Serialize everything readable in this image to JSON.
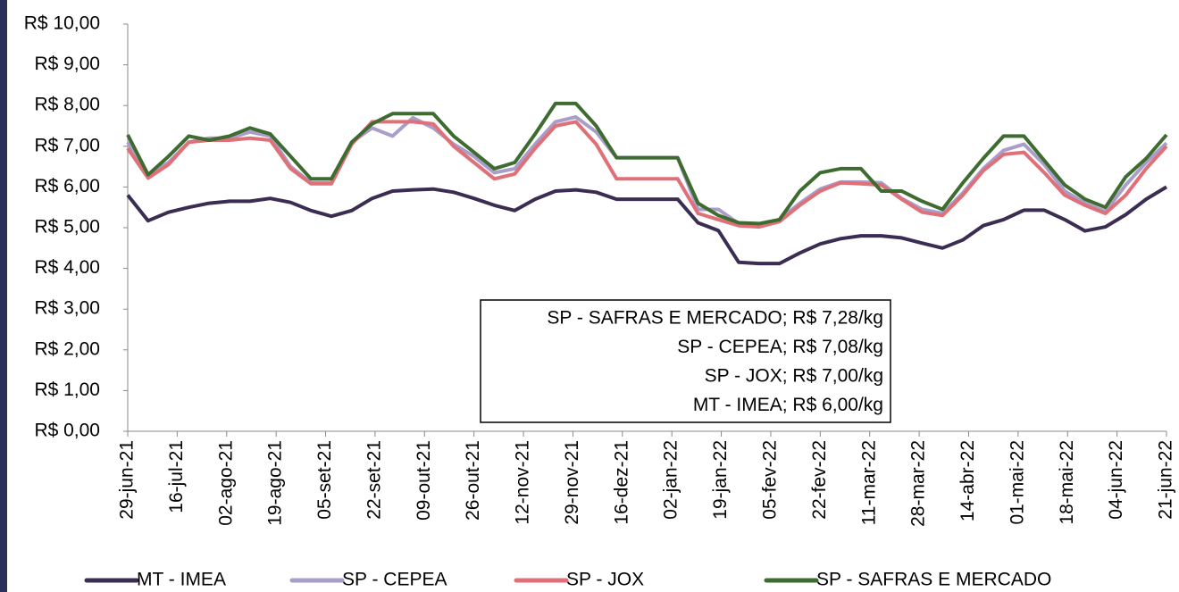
{
  "chart_data": {
    "type": "line",
    "x": [
      "2021-06-29",
      "2021-07-06",
      "2021-07-13",
      "2021-07-20",
      "2021-07-27",
      "2021-08-03",
      "2021-08-10",
      "2021-08-17",
      "2021-08-24",
      "2021-08-31",
      "2021-09-07",
      "2021-09-14",
      "2021-09-21",
      "2021-09-28",
      "2021-10-05",
      "2021-10-12",
      "2021-10-19",
      "2021-10-26",
      "2021-11-02",
      "2021-11-09",
      "2021-11-16",
      "2021-11-23",
      "2021-11-30",
      "2021-12-07",
      "2021-12-14",
      "2021-12-21",
      "2021-12-28",
      "2022-01-04",
      "2022-01-11",
      "2022-01-18",
      "2022-01-25",
      "2022-02-01",
      "2022-02-08",
      "2022-02-15",
      "2022-02-22",
      "2022-03-01",
      "2022-03-08",
      "2022-03-15",
      "2022-03-22",
      "2022-03-29",
      "2022-04-05",
      "2022-04-12",
      "2022-04-19",
      "2022-04-26",
      "2022-05-03",
      "2022-05-10",
      "2022-05-17",
      "2022-05-24",
      "2022-05-31",
      "2022-06-07",
      "2022-06-14",
      "2022-06-21"
    ],
    "xlim": [
      "2021-06-29",
      "2022-06-21"
    ],
    "xticks": [
      {
        "value": "2021-06-29",
        "label": "29-jun-21"
      },
      {
        "value": "2021-07-16",
        "label": "16-jul-21"
      },
      {
        "value": "2021-08-02",
        "label": "02-ago-21"
      },
      {
        "value": "2021-08-19",
        "label": "19-ago-21"
      },
      {
        "value": "2021-09-05",
        "label": "05-set-21"
      },
      {
        "value": "2021-09-22",
        "label": "22-set-21"
      },
      {
        "value": "2021-10-09",
        "label": "09-out-21"
      },
      {
        "value": "2021-10-26",
        "label": "26-out-21"
      },
      {
        "value": "2021-11-12",
        "label": "12-nov-21"
      },
      {
        "value": "2021-11-29",
        "label": "29-nov-21"
      },
      {
        "value": "2021-12-16",
        "label": "16-dez-21"
      },
      {
        "value": "2022-01-02",
        "label": "02-jan-22"
      },
      {
        "value": "2022-01-19",
        "label": "19-jan-22"
      },
      {
        "value": "2022-02-05",
        "label": "05-fev-22"
      },
      {
        "value": "2022-02-22",
        "label": "22-fev-22"
      },
      {
        "value": "2022-03-11",
        "label": "11-mar-22"
      },
      {
        "value": "2022-03-28",
        "label": "28-mar-22"
      },
      {
        "value": "2022-04-14",
        "label": "14-abr-22"
      },
      {
        "value": "2022-05-01",
        "label": "01-mai-22"
      },
      {
        "value": "2022-05-18",
        "label": "18-mai-22"
      },
      {
        "value": "2022-06-04",
        "label": "04-jun-22"
      },
      {
        "value": "2022-06-21",
        "label": "21-jun-22"
      }
    ],
    "ylim": [
      0,
      10
    ],
    "yticks": [
      {
        "value": 0,
        "label": "R$ 0,00"
      },
      {
        "value": 1,
        "label": "R$ 1,00"
      },
      {
        "value": 2,
        "label": "R$ 2,00"
      },
      {
        "value": 3,
        "label": "R$ 3,00"
      },
      {
        "value": 4,
        "label": "R$ 4,00"
      },
      {
        "value": 5,
        "label": "R$ 5,00"
      },
      {
        "value": 6,
        "label": "R$ 6,00"
      },
      {
        "value": 7,
        "label": "R$ 7,00"
      },
      {
        "value": 8,
        "label": "R$ 8,00"
      },
      {
        "value": 9,
        "label": "R$ 9,00"
      },
      {
        "value": 10,
        "label": "R$ 10,00"
      }
    ],
    "grid": false,
    "legend": "bottom",
    "annotations": [
      "SP - SAFRAS E MERCADO; R$ 7,28/kg",
      "SP - CEPEA; R$ 7,08/kg",
      "SP - JOX; R$ 7,00/kg",
      "MT - IMEA; R$ 6,00/kg"
    ],
    "series": [
      {
        "name": "MT - IMEA",
        "color": "#3b2d52",
        "values": [
          5.8,
          5.17,
          5.38,
          5.5,
          5.6,
          5.65,
          5.65,
          5.72,
          5.62,
          5.42,
          5.28,
          5.42,
          5.72,
          5.9,
          5.93,
          5.95,
          5.87,
          5.72,
          5.55,
          5.42,
          5.7,
          5.9,
          5.93,
          5.87,
          5.7,
          5.7,
          5.7,
          5.7,
          5.12,
          4.93,
          4.15,
          4.12,
          4.12,
          4.38,
          4.6,
          4.73,
          4.8,
          4.8,
          4.75,
          4.62,
          4.5,
          4.7,
          5.05,
          5.2,
          5.43,
          5.43,
          5.2,
          4.92,
          5.02,
          5.32,
          5.7,
          6.0
        ]
      },
      {
        "name": "SP - CEPEA",
        "color": "#a99dca",
        "values": [
          7.1,
          6.3,
          6.6,
          7.1,
          7.2,
          7.2,
          7.35,
          7.25,
          6.5,
          6.1,
          6.1,
          7.1,
          7.45,
          7.25,
          7.7,
          7.45,
          7.05,
          6.75,
          6.35,
          6.45,
          7.05,
          7.6,
          7.72,
          7.35,
          6.72,
          6.72,
          6.72,
          6.72,
          5.45,
          5.45,
          5.1,
          5.05,
          5.2,
          5.6,
          5.95,
          6.12,
          6.12,
          6.1,
          5.72,
          5.45,
          5.35,
          5.85,
          6.45,
          6.9,
          7.05,
          6.55,
          5.9,
          5.6,
          5.4,
          6.05,
          6.6,
          7.08
        ]
      },
      {
        "name": "SP - JOX",
        "color": "#e07078",
        "values": [
          6.95,
          6.22,
          6.55,
          7.1,
          7.15,
          7.15,
          7.2,
          7.15,
          6.45,
          6.08,
          6.08,
          7.05,
          7.6,
          7.6,
          7.6,
          7.55,
          7.0,
          6.6,
          6.2,
          6.32,
          6.95,
          7.5,
          7.6,
          7.05,
          6.2,
          6.2,
          6.2,
          6.2,
          5.35,
          5.2,
          5.05,
          5.02,
          5.15,
          5.55,
          5.9,
          6.1,
          6.08,
          6.05,
          5.7,
          5.38,
          5.3,
          5.8,
          6.4,
          6.8,
          6.85,
          6.35,
          5.8,
          5.55,
          5.35,
          5.8,
          6.45,
          7.0
        ]
      },
      {
        "name": "SP - SAFRAS E MERCADO",
        "color": "#3e6b30",
        "values": [
          7.28,
          6.3,
          6.75,
          7.25,
          7.15,
          7.25,
          7.45,
          7.3,
          6.75,
          6.2,
          6.2,
          7.1,
          7.55,
          7.8,
          7.8,
          7.8,
          7.25,
          6.85,
          6.45,
          6.6,
          7.3,
          8.05,
          8.05,
          7.5,
          6.72,
          6.72,
          6.72,
          6.72,
          5.6,
          5.3,
          5.12,
          5.1,
          5.2,
          5.9,
          6.35,
          6.45,
          6.45,
          5.9,
          5.9,
          5.65,
          5.45,
          6.1,
          6.7,
          7.25,
          7.25,
          6.65,
          6.05,
          5.7,
          5.5,
          6.25,
          6.7,
          7.28
        ]
      }
    ]
  }
}
